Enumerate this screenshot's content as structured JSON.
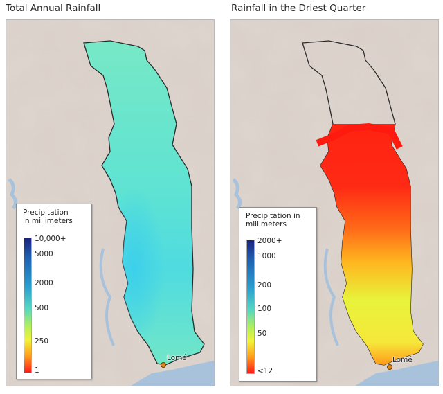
{
  "panels": [
    {
      "title": "Total Annual Rainfall",
      "legend": {
        "title": [
          "Precipitation",
          "in millimeters"
        ],
        "ticks": [
          "10,000+",
          "5000",
          "2000",
          "500",
          "250",
          "1"
        ]
      },
      "city": "Lomé"
    },
    {
      "title": "Rainfall in the Driest Quarter",
      "legend": {
        "title": [
          "Precipitation in",
          "millimeters"
        ],
        "ticks": [
          "2000+",
          "1000",
          "200",
          "100",
          "50",
          "<12"
        ]
      },
      "city": "Lomé"
    }
  ],
  "colors": {
    "terrain": "#d9cfc8",
    "water": "#a9c2dc",
    "annual_fill": "#5fe3cf",
    "driest_red": "#ff2a14",
    "driest_orange": "#ff8a1e",
    "driest_yellow": "#e8f33a",
    "border": "#2a2a2a"
  }
}
